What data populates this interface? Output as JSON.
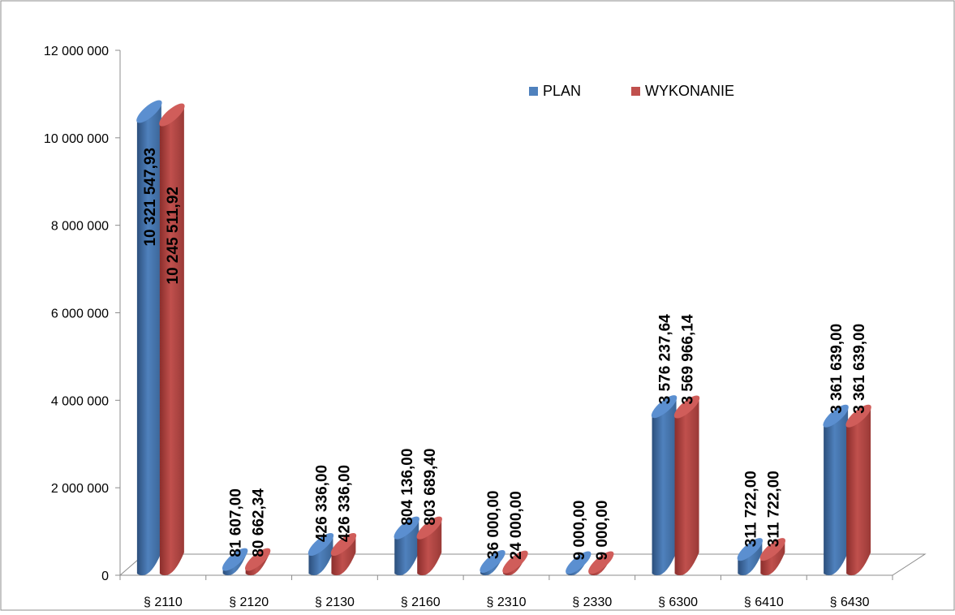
{
  "chart_data": {
    "type": "bar",
    "title": "",
    "xlabel": "",
    "ylabel": "",
    "categories": [
      "§ 2110",
      "§ 2120",
      "§ 2130",
      "§ 2160",
      "§ 2310",
      "§ 2330",
      "§ 6300",
      "§ 6410",
      "§ 6430"
    ],
    "series": [
      {
        "name": "PLAN",
        "color": "#4F81BD",
        "values": [
          10321547.93,
          81607.0,
          426336.0,
          804136.0,
          36000.0,
          9000.0,
          3576237.64,
          311722.0,
          3361639.0
        ],
        "labels": [
          "10 321 547,93",
          "81 607,00",
          "426 336,00",
          "804 136,00",
          "36 000,00",
          "9 000,00",
          "3 576 237,64",
          "311 722,00",
          "3 361 639,00"
        ]
      },
      {
        "name": "WYKONANIE",
        "color": "#C0504D",
        "values": [
          10245511.92,
          80662.34,
          426336.0,
          803689.4,
          24000.0,
          9000.0,
          3569966.14,
          311722.0,
          3361639.0
        ],
        "labels": [
          "10 245 511,92",
          "80 662,34",
          "426 336,00",
          "803 689,40",
          "24 000,00",
          "9 000,00",
          "3 569 966,14",
          "311 722,00",
          "3 361 639,00"
        ]
      }
    ],
    "ylim": [
      0,
      12000000
    ],
    "yticks": [
      0,
      2000000,
      4000000,
      6000000,
      8000000,
      10000000,
      12000000
    ],
    "ytick_labels": [
      "0",
      "2 000 000",
      "4 000 000",
      "6 000 000",
      "8 000 000",
      "10 000 000",
      "12 000 000"
    ],
    "legend": "top-right",
    "grid": false
  }
}
